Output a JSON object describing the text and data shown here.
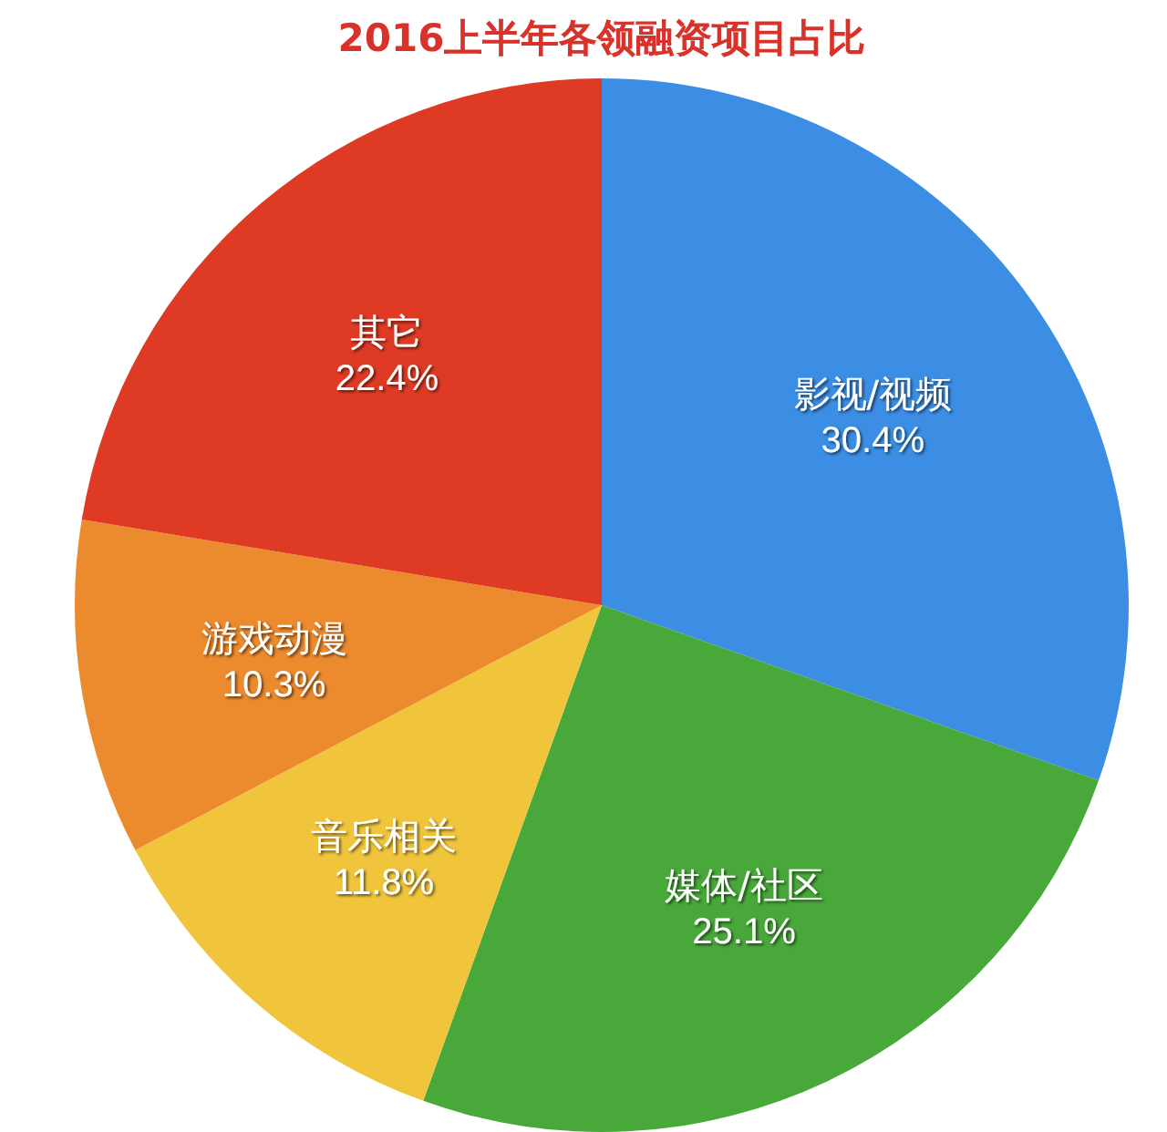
{
  "chart_data": {
    "type": "pie",
    "title": "2016上半年各领融资项目占比",
    "categories": [
      "影视/视频",
      "媒体/社区",
      "音乐相关",
      "游戏动漫",
      "其它"
    ],
    "values": [
      30.4,
      25.1,
      11.8,
      10.3,
      22.4
    ],
    "value_labels": [
      "30.4%",
      "25.1%",
      "11.8%",
      "10.3%",
      "22.4%"
    ],
    "colors": [
      "#3b8ee4",
      "#48a83a",
      "#f0c53c",
      "#ec8a2e",
      "#de3a24"
    ]
  }
}
